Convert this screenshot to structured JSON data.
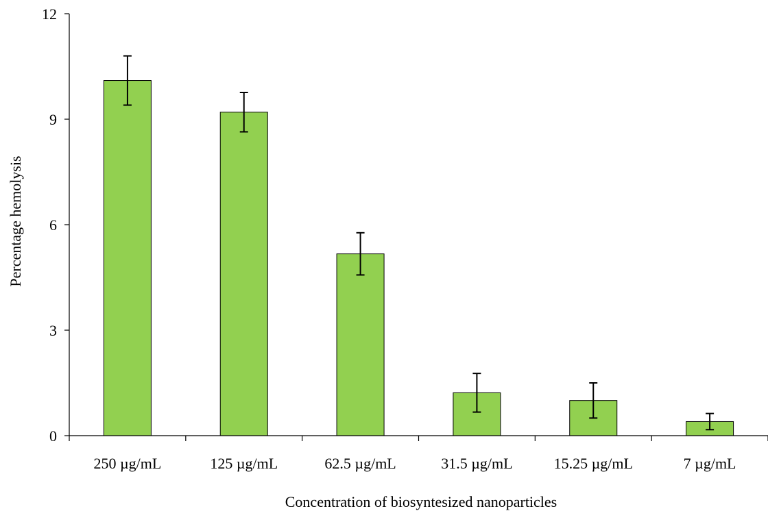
{
  "chart_data": {
    "type": "bar",
    "title": "",
    "xlabel": "Concentration of biosyntesized nanoparticles",
    "ylabel": "Percentage hemolysis",
    "categories": [
      "250 µg/mL",
      "125 µg/mL",
      "62.5 µg/mL",
      "31.5 µg/mL",
      "15.25 µg/mL",
      "7 µg/mL"
    ],
    "series": [
      {
        "values": [
          10.1,
          9.2,
          5.17,
          1.22,
          1.0,
          0.4
        ],
        "errors": [
          0.7,
          0.56,
          0.6,
          0.55,
          0.5,
          0.23
        ]
      }
    ],
    "ylim": [
      0,
      12
    ],
    "yticks": [
      0,
      3,
      6,
      9,
      12
    ],
    "grid": false,
    "legend": "none",
    "bar_color": "#92d050",
    "bar_edge_color": "#000000",
    "error_bar_color": "#000000"
  }
}
